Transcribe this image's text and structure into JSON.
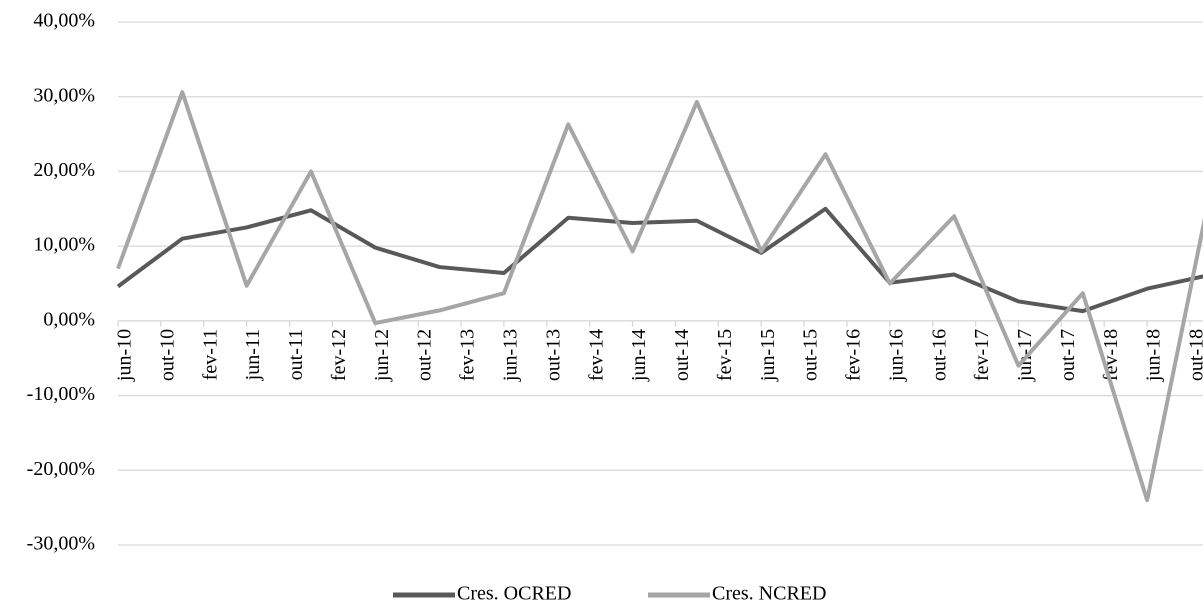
{
  "chart_data": {
    "type": "line",
    "x": [
      0,
      6,
      12,
      18,
      24,
      30,
      36,
      42,
      48,
      54,
      60,
      66,
      72,
      78,
      84,
      90,
      96,
      102
    ],
    "series": [
      {
        "name": "Cres. OCRED",
        "color": "#595959",
        "values": [
          4.6,
          11.0,
          12.5,
          14.8,
          9.8,
          7.2,
          6.4,
          13.8,
          13.1,
          13.4,
          9.1,
          15.0,
          5.1,
          6.2,
          2.6,
          1.3,
          4.3,
          6.2
        ]
      },
      {
        "name": "Cres. NCRED",
        "color": "#a6a6a6",
        "values": [
          7.0,
          30.6,
          4.7,
          20.0,
          -0.3,
          1.4,
          3.7,
          26.3,
          9.3,
          29.3,
          9.3,
          22.3,
          5.0,
          14.0,
          -6.0,
          3.7,
          -24.0,
          18.0
        ]
      }
    ],
    "xlim": [
      0,
      101
    ],
    "xticks": [
      {
        "value": 0,
        "label": "jun-10"
      },
      {
        "value": 4,
        "label": "out-10"
      },
      {
        "value": 8,
        "label": "fev-11"
      },
      {
        "value": 12,
        "label": "jun-11"
      },
      {
        "value": 16,
        "label": "out-11"
      },
      {
        "value": 20,
        "label": "fev-12"
      },
      {
        "value": 24,
        "label": "jun-12"
      },
      {
        "value": 28,
        "label": "out-12"
      },
      {
        "value": 32,
        "label": "fev-13"
      },
      {
        "value": 36,
        "label": "jun-13"
      },
      {
        "value": 40,
        "label": "out-13"
      },
      {
        "value": 44,
        "label": "fev-14"
      },
      {
        "value": 48,
        "label": "jun-14"
      },
      {
        "value": 52,
        "label": "out-14"
      },
      {
        "value": 56,
        "label": "fev-15"
      },
      {
        "value": 60,
        "label": "jun-15"
      },
      {
        "value": 64,
        "label": "out-15"
      },
      {
        "value": 68,
        "label": "fev-16"
      },
      {
        "value": 72,
        "label": "jun-16"
      },
      {
        "value": 76,
        "label": "out-16"
      },
      {
        "value": 80,
        "label": "fev-17"
      },
      {
        "value": 84,
        "label": "jun-17"
      },
      {
        "value": 88,
        "label": "out-17"
      },
      {
        "value": 92,
        "label": "fev-18"
      },
      {
        "value": 96,
        "label": "jun-18"
      },
      {
        "value": 100,
        "label": "out-18"
      }
    ],
    "ylim": [
      -30,
      40
    ],
    "yticks": [
      {
        "value": -30,
        "label": "-30,00%"
      },
      {
        "value": -20,
        "label": "-20,00%"
      },
      {
        "value": -10,
        "label": "-10,00%"
      },
      {
        "value": 0,
        "label": "0,00%"
      },
      {
        "value": 10,
        "label": "10,00%"
      },
      {
        "value": 20,
        "label": "20,00%"
      },
      {
        "value": 30,
        "label": "30,00%"
      },
      {
        "value": 40,
        "label": "40,00%"
      }
    ],
    "grid": true,
    "legend": "bottom"
  }
}
